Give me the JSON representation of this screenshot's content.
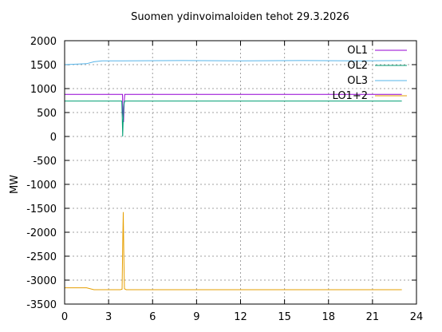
{
  "chart_data": {
    "type": "line",
    "title": "Suomen ydinvoimaloiden tehot 29.3.2026",
    "xlabel": "",
    "ylabel": "MW",
    "xlim": [
      0,
      24
    ],
    "ylim": [
      -3500,
      2000
    ],
    "xticks": [
      0,
      3,
      6,
      9,
      12,
      15,
      18,
      21,
      24
    ],
    "yticks": [
      2000,
      1500,
      1000,
      500,
      0,
      -500,
      -1000,
      -1500,
      -2000,
      -2500,
      -3000,
      -3500
    ],
    "grid": true,
    "legend_position": "top-right",
    "series": [
      {
        "name": "OL1",
        "color": "#9400d3",
        "points": [
          [
            0,
            880
          ],
          [
            3.95,
            880
          ],
          [
            3.97,
            500
          ],
          [
            4.02,
            300
          ],
          [
            4.06,
            700
          ],
          [
            4.1,
            880
          ],
          [
            23,
            880
          ]
        ]
      },
      {
        "name": "OL2",
        "color": "#009e73",
        "points": [
          [
            0,
            740
          ],
          [
            3.9,
            740
          ],
          [
            3.93,
            400
          ],
          [
            3.96,
            0
          ],
          [
            3.99,
            300
          ],
          [
            4.02,
            550
          ],
          [
            4.05,
            680
          ],
          [
            4.1,
            740
          ],
          [
            23,
            740
          ]
        ]
      },
      {
        "name": "OL3",
        "color": "#56b4e9",
        "points": [
          [
            0,
            1500
          ],
          [
            0.8,
            1510
          ],
          [
            1.5,
            1520
          ],
          [
            2.0,
            1560
          ],
          [
            2.6,
            1580
          ],
          [
            4,
            1580
          ],
          [
            8,
            1585
          ],
          [
            12,
            1580
          ],
          [
            16,
            1585
          ],
          [
            20,
            1580
          ],
          [
            23,
            1585
          ]
        ]
      },
      {
        "name": "LO1+2",
        "color": "#e69f00",
        "points": [
          [
            0,
            -3160
          ],
          [
            1.5,
            -3160
          ],
          [
            2.0,
            -3200
          ],
          [
            3.8,
            -3200
          ],
          [
            3.92,
            -3190
          ],
          [
            3.97,
            -2100
          ],
          [
            4.0,
            -1580
          ],
          [
            4.04,
            -2500
          ],
          [
            4.08,
            -3180
          ],
          [
            4.2,
            -3200
          ],
          [
            8,
            -3200
          ],
          [
            12,
            -3200
          ],
          [
            16,
            -3200
          ],
          [
            20,
            -3200
          ],
          [
            23,
            -3200
          ]
        ]
      }
    ]
  }
}
